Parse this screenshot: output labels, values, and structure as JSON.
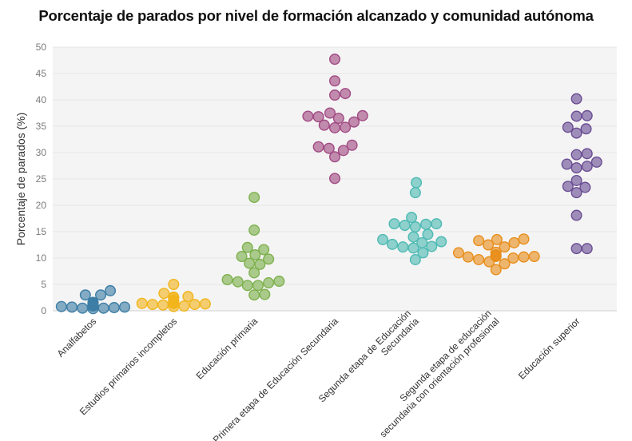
{
  "chart_data": {
    "type": "scatter",
    "subtype": "beeswarm",
    "title": "Porcentaje de parados por nivel de formación alcanzado y comunidad autónoma",
    "ylabel": "Porcentaje de parados (%)",
    "xlabel": "",
    "ylim": [
      0,
      50
    ],
    "yticks": [
      0,
      5,
      10,
      15,
      20,
      25,
      30,
      35,
      40,
      45,
      50
    ],
    "grid": true,
    "legend": "none",
    "categories": [
      "Analfabetos",
      "Estudios primarios incompletos",
      "Educación primaria",
      "Primera etapa de Educación Secundaria",
      "Segunda etapa de Educación Secundaria",
      "Segunda etapa de educación secundaria con orientación profesional",
      "Educación superior"
    ],
    "category_label_lines": [
      [
        "Analfabetos"
      ],
      [
        "Estudios primarios incompletos"
      ],
      [
        "Educación primaria"
      ],
      [
        "Primera etapa de Educación Secundaria"
      ],
      [
        "Segunda etapa de Educación",
        "Secundaria"
      ],
      [
        "Segunda etapa de educación",
        "secundaria con orientación profesional"
      ],
      [
        "Educación superior"
      ]
    ],
    "colors": [
      "#3d7ea6",
      "#f2b51d",
      "#7db04c",
      "#a14a83",
      "#4dbab3",
      "#e88e1b",
      "#6a4d94"
    ],
    "series": [
      {
        "category": "Analfabetos",
        "values": [
          1.3,
          1.6,
          0.5,
          1.0,
          3.0,
          0.8,
          1.5,
          1.2,
          1.0,
          3.8,
          0.7,
          1.0,
          3.0,
          0.6,
          1.1,
          0.7,
          1.0,
          0.5,
          0.9,
          0.4
        ]
      },
      {
        "category": "Estudios primarios incompletos",
        "values": [
          0.8,
          1.4,
          3.3,
          1.8,
          1.1,
          2.7,
          1.2,
          0.9,
          5.0,
          2.6,
          1.4,
          1.5,
          2.5,
          1.3,
          2.0,
          1.2,
          1.4,
          1.6
        ]
      },
      {
        "category": "Educación primaria",
        "values": [
          5.9,
          5.5,
          3.0,
          10.6,
          8.8,
          4.8,
          21.5,
          15.3,
          12.0,
          9.8,
          3.1,
          5.3,
          7.2,
          10.3,
          4.8,
          9.0,
          11.6,
          5.6
        ]
      },
      {
        "category": "Primera etapa de Educación Secundaria",
        "values": [
          36.5,
          36.8,
          35.2,
          31.1,
          29.2,
          41.2,
          47.7,
          43.6,
          40.9,
          37.0,
          34.8,
          30.4,
          25.1,
          36.9,
          34.7,
          31.4,
          35.8,
          30.8,
          37.5
        ]
      },
      {
        "category": "Segunda etapa de Educación Secundaria",
        "values": [
          12.1,
          12.2,
          16.5,
          14.0,
          11.9,
          15.9,
          17.7,
          9.7,
          13.5,
          11.0,
          24.3,
          22.4,
          16.2,
          13.1,
          16.5,
          14.5,
          12.6,
          16.4,
          12.9
        ]
      },
      {
        "category": "Segunda etapa de educación secundaria con orientación profesional",
        "values": [
          10.4,
          10.3,
          12.5,
          10.2,
          13.3,
          7.8,
          11.1,
          12.9,
          9.3,
          9.7,
          10.6,
          10.0,
          8.9,
          11.0,
          13.5,
          13.6,
          10.2,
          12.1,
          10.3
        ]
      },
      {
        "category": "Educación superior",
        "values": [
          27.4,
          23.4,
          28.2,
          33.7,
          37.0,
          11.8,
          23.6,
          27.8,
          29.6,
          40.2,
          36.9,
          34.5,
          18.1,
          11.8,
          22.4,
          24.7,
          29.8,
          27.1,
          34.8
        ]
      }
    ]
  }
}
